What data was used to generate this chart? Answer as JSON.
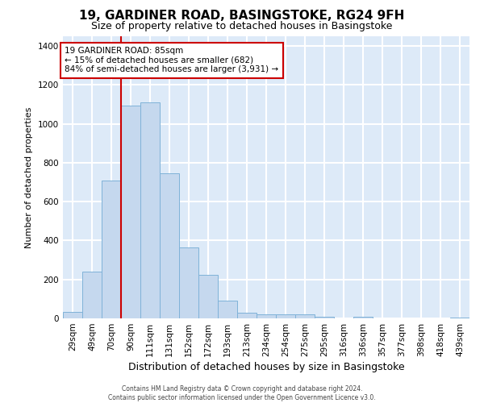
{
  "title": "19, GARDINER ROAD, BASINGSTOKE, RG24 9FH",
  "subtitle": "Size of property relative to detached houses in Basingstoke",
  "xlabel": "Distribution of detached houses by size in Basingstoke",
  "ylabel": "Number of detached properties",
  "footer_line1": "Contains HM Land Registry data © Crown copyright and database right 2024.",
  "footer_line2": "Contains public sector information licensed under the Open Government Licence v3.0.",
  "categories": [
    "29sqm",
    "49sqm",
    "70sqm",
    "90sqm",
    "111sqm",
    "131sqm",
    "152sqm",
    "172sqm",
    "193sqm",
    "213sqm",
    "234sqm",
    "254sqm",
    "275sqm",
    "295sqm",
    "316sqm",
    "336sqm",
    "357sqm",
    "377sqm",
    "398sqm",
    "418sqm",
    "439sqm"
  ],
  "values": [
    35,
    240,
    710,
    1095,
    1110,
    745,
    365,
    225,
    90,
    30,
    20,
    20,
    20,
    10,
    0,
    10,
    0,
    0,
    0,
    0,
    5
  ],
  "bar_color": "#c5d8ee",
  "bar_edge_color": "#7fb2d8",
  "vline_color": "#cc0000",
  "vline_x": 2.5,
  "annotation_text": "19 GARDINER ROAD: 85sqm\n← 15% of detached houses are smaller (682)\n84% of semi-detached houses are larger (3,931) →",
  "annotation_box_facecolor": "#ffffff",
  "annotation_box_edgecolor": "#cc0000",
  "ylim": [
    0,
    1450
  ],
  "yticks": [
    0,
    200,
    400,
    600,
    800,
    1000,
    1200,
    1400
  ],
  "bg_color": "#ddeaf8",
  "grid_color": "#ffffff",
  "title_fontsize": 11,
  "subtitle_fontsize": 9,
  "tick_fontsize": 7.5,
  "ylabel_fontsize": 8,
  "xlabel_fontsize": 9,
  "footer_fontsize": 5.5
}
